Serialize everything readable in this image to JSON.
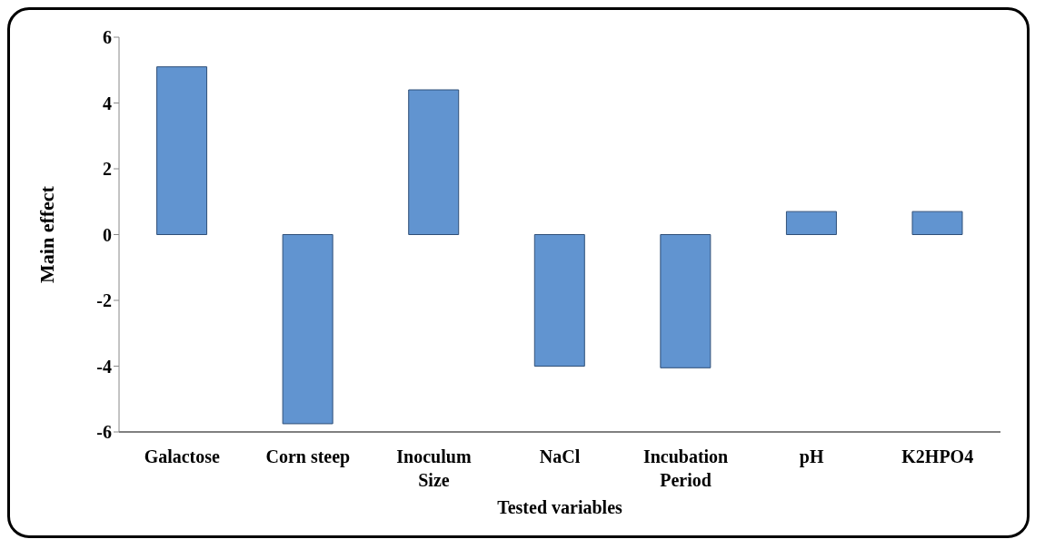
{
  "chart_data": {
    "type": "bar",
    "xlabel": "Tested variables",
    "ylabel": "Main effect",
    "categories": [
      "Galactose",
      "Corn steep",
      "Inoculum Size",
      "NaCl",
      "Incubation Period",
      "pH",
      "K2HPO4"
    ],
    "values": [
      5.1,
      -5.75,
      4.4,
      -4.0,
      -4.05,
      0.7,
      0.7
    ],
    "color": "#6194d0",
    "ylim": [
      -6,
      6
    ],
    "yticks": [
      -6,
      -4,
      -2,
      0,
      2,
      4,
      6
    ]
  }
}
